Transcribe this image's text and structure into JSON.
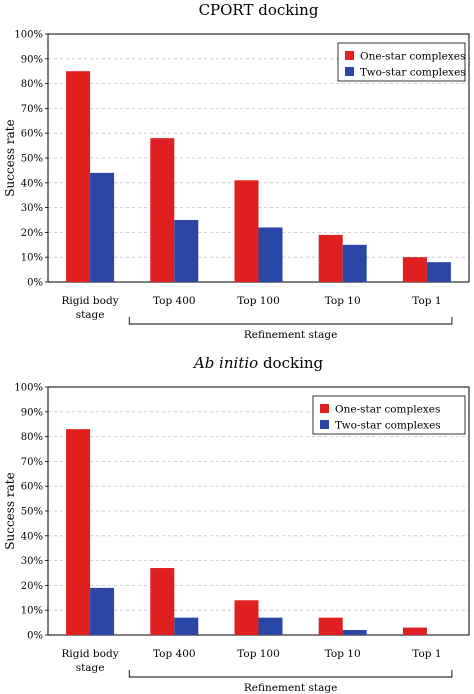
{
  "chart_data": [
    {
      "type": "bar",
      "title": "CPORT docking",
      "ylabel": "Success rate",
      "ylim": [
        0,
        100
      ],
      "yticks": [
        "0%",
        "10%",
        "20%",
        "30%",
        "40%",
        "50%",
        "60%",
        "70%",
        "80%",
        "90%",
        "100%"
      ],
      "grid": true,
      "legend": "top-right",
      "categories": [
        [
          "Rigid body",
          "stage"
        ],
        [
          "Top 400"
        ],
        [
          "Top 100"
        ],
        [
          "Top 10"
        ],
        [
          "Top 1"
        ]
      ],
      "group_label": "Refinement stage",
      "series": [
        {
          "name": "One-star complexes",
          "color": "#e02020",
          "values": [
            85,
            58,
            41,
            19,
            10
          ]
        },
        {
          "name": "Two-star complexes",
          "color": "#2a47a8",
          "values": [
            44,
            25,
            22,
            15,
            8
          ]
        }
      ]
    },
    {
      "type": "bar",
      "title": "Ab initio docking",
      "title_italic": "Ab initio",
      "title_rest": " docking",
      "ylabel": "Success rate",
      "ylim": [
        0,
        100
      ],
      "yticks": [
        "0%",
        "10%",
        "20%",
        "30%",
        "40%",
        "50%",
        "60%",
        "70%",
        "80%",
        "90%",
        "100%"
      ],
      "grid": true,
      "legend": "top-right",
      "categories": [
        [
          "Rigid body",
          "stage"
        ],
        [
          "Top 400"
        ],
        [
          "Top 100"
        ],
        [
          "Top 10"
        ],
        [
          "Top 1"
        ]
      ],
      "group_label": "Refinement stage",
      "series": [
        {
          "name": "One-star complexes",
          "color": "#e02020",
          "values": [
            83,
            27,
            14,
            7,
            3
          ]
        },
        {
          "name": "Two-star complexes",
          "color": "#2a47a8",
          "values": [
            19,
            7,
            7,
            2,
            0
          ]
        }
      ]
    }
  ]
}
